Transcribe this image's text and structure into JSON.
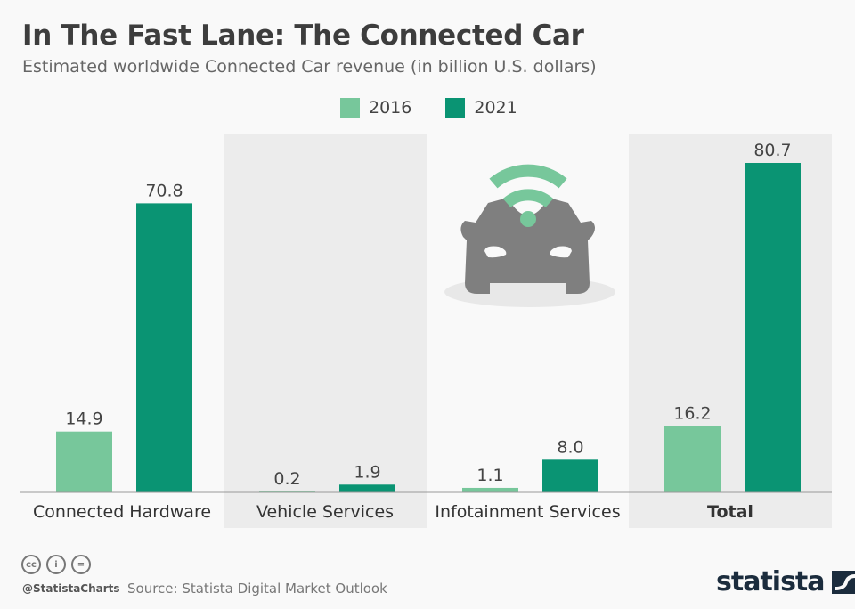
{
  "chart_data": {
    "type": "bar",
    "title": "In The Fast Lane: The Connected Car",
    "subtitle": "Estimated worldwide Connected Car revenue (in billion U.S. dollars)",
    "categories": [
      "Connected Hardware",
      "Vehicle Services",
      "Infotainment Services",
      "Total"
    ],
    "series": [
      {
        "name": "2016",
        "values": [
          14.9,
          0.2,
          1.1,
          16.2
        ],
        "color": "#77c79b"
      },
      {
        "name": "2021",
        "values": [
          70.8,
          1.9,
          8.0,
          80.7
        ],
        "color": "#0a9473"
      }
    ],
    "labels": [
      [
        "14.9",
        "0.2",
        "1.1",
        "16.2"
      ],
      [
        "70.8",
        "1.9",
        "8.0",
        "80.7"
      ]
    ],
    "ylim": [
      0,
      80.7
    ],
    "grid": false,
    "legend": "top-center",
    "shaded_columns": [
      "Vehicle Services",
      "Total"
    ]
  },
  "footer": {
    "handle": "@StatistaCharts",
    "source": "Source: Statista Digital Market Outlook",
    "logo": "statista",
    "license_icons": [
      "cc-icon",
      "by-icon",
      "nd-icon"
    ]
  },
  "colors": {
    "shade": "#ececec",
    "axis": "#999999",
    "icon_car": "#7f7f7f",
    "icon_wifi": "#77c79b"
  }
}
